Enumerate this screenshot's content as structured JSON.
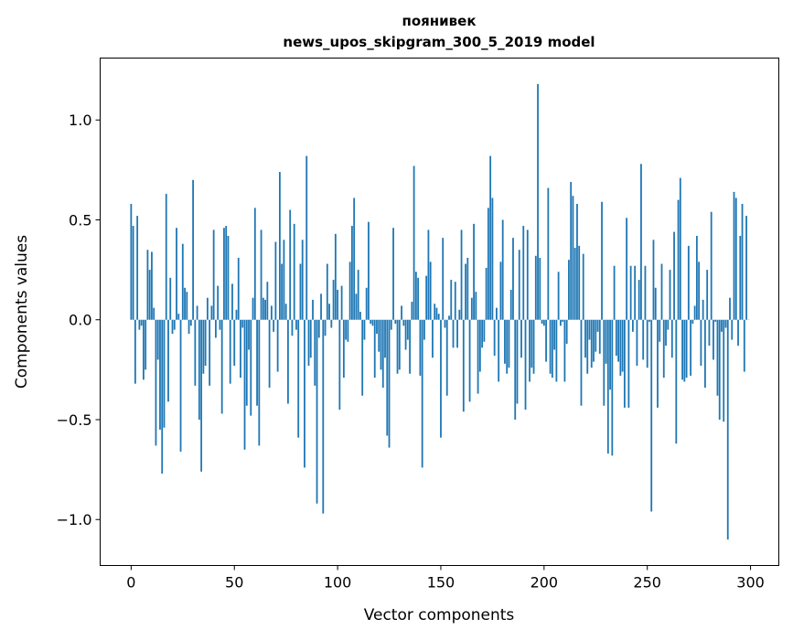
{
  "chart_data": {
    "type": "bar",
    "title": [
      "поянивек",
      "news_upos_skipgram_300_5_2019 model"
    ],
    "xlabel": "Vector components",
    "ylabel": "Components values",
    "xlim": [
      -15,
      313.7
    ],
    "ylim": [
      -1.23,
      1.31
    ],
    "xticks": [
      0,
      50,
      100,
      150,
      200,
      250,
      300
    ],
    "xtick_labels": [
      "0",
      "50",
      "100",
      "150",
      "200",
      "250",
      "300"
    ],
    "yticks": [
      -1.0,
      -0.5,
      0.0,
      0.5,
      1.0
    ],
    "ytick_labels": [
      "−1.0",
      "−0.5",
      "0.0",
      "0.5",
      "1.0"
    ],
    "grid": false,
    "bar_color": "#1f77b4",
    "values": [
      0.58,
      0.47,
      -0.32,
      0.52,
      -0.05,
      -0.03,
      -0.3,
      -0.25,
      0.35,
      0.25,
      0.34,
      0.06,
      -0.63,
      -0.2,
      -0.55,
      -0.77,
      -0.54,
      0.63,
      -0.41,
      0.21,
      -0.07,
      -0.05,
      0.46,
      0.03,
      -0.66,
      0.38,
      0.16,
      0.14,
      -0.07,
      -0.03,
      0.7,
      -0.33,
      0.07,
      -0.5,
      -0.76,
      -0.27,
      -0.23,
      0.11,
      -0.33,
      0.07,
      0.45,
      -0.09,
      0.17,
      -0.05,
      -0.47,
      0.46,
      0.47,
      0.42,
      -0.32,
      0.18,
      -0.23,
      0.05,
      0.31,
      -0.29,
      -0.04,
      -0.65,
      -0.43,
      -0.15,
      -0.48,
      0.11,
      0.56,
      -0.43,
      -0.63,
      0.45,
      0.11,
      0.1,
      0.19,
      -0.34,
      0.07,
      -0.06,
      0.39,
      -0.26,
      0.74,
      0.28,
      0.4,
      0.08,
      -0.42,
      0.55,
      -0.08,
      0.48,
      -0.05,
      -0.59,
      0.28,
      0.4,
      -0.74,
      0.82,
      -0.23,
      -0.19,
      0.1,
      -0.33,
      -0.92,
      -0.09,
      0.13,
      -0.97,
      -0.08,
      0.28,
      0.08,
      -0.04,
      0.2,
      0.43,
      0.15,
      -0.45,
      0.17,
      -0.29,
      -0.1,
      -0.11,
      0.29,
      0.47,
      0.61,
      0.13,
      0.25,
      0.04,
      -0.38,
      -0.1,
      0.16,
      0.49,
      -0.02,
      -0.03,
      -0.29,
      -0.07,
      -0.16,
      -0.25,
      -0.34,
      -0.19,
      -0.58,
      -0.64,
      -0.05,
      0.46,
      -0.02,
      -0.27,
      -0.25,
      0.07,
      -0.03,
      -0.15,
      -0.1,
      -0.27,
      0.09,
      0.77,
      0.24,
      0.21,
      -0.28,
      -0.74,
      -0.1,
      0.22,
      0.45,
      0.29,
      -0.19,
      0.08,
      0.06,
      0.03,
      -0.59,
      0.41,
      -0.04,
      -0.38,
      0.02,
      0.2,
      -0.14,
      0.19,
      -0.14,
      0.05,
      0.45,
      -0.46,
      0.28,
      0.31,
      -0.41,
      0.11,
      0.48,
      0.14,
      -0.37,
      -0.26,
      -0.14,
      -0.11,
      0.26,
      0.56,
      0.82,
      0.61,
      -0.18,
      0.06,
      -0.31,
      0.29,
      0.5,
      -0.22,
      -0.27,
      -0.24,
      0.15,
      0.41,
      -0.5,
      -0.42,
      0.35,
      -0.19,
      0.47,
      -0.45,
      0.45,
      -0.31,
      -0.24,
      -0.27,
      0.32,
      1.18,
      0.31,
      -0.02,
      -0.03,
      -0.21,
      0.66,
      -0.27,
      -0.29,
      -0.15,
      -0.31,
      0.24,
      -0.03,
      -0.01,
      -0.31,
      -0.12,
      0.3,
      0.69,
      0.62,
      0.36,
      0.58,
      0.37,
      -0.43,
      0.33,
      -0.19,
      -0.27,
      -0.1,
      -0.24,
      -0.21,
      -0.16,
      -0.06,
      -0.17,
      0.59,
      -0.43,
      -0.22,
      -0.67,
      -0.35,
      -0.68,
      0.27,
      -0.18,
      -0.21,
      -0.28,
      -0.26,
      -0.44,
      0.51,
      -0.44,
      0.27,
      -0.06,
      0.27,
      -0.23,
      0.2,
      0.78,
      -0.2,
      0.27,
      -0.24,
      -0.01,
      -0.96,
      0.4,
      0.16,
      -0.44,
      -0.11,
      0.28,
      -0.29,
      -0.13,
      -0.05,
      0.25,
      -0.19,
      0.44,
      -0.62,
      0.6,
      0.71,
      -0.3,
      -0.31,
      -0.29,
      0.37,
      -0.28,
      -0.02,
      0.07,
      0.42,
      0.29,
      -0.23,
      0.1,
      -0.34,
      0.25,
      -0.13,
      0.54,
      -0.2,
      -0.01,
      -0.38,
      -0.5,
      -0.06,
      -0.51,
      -0.04,
      -1.1,
      0.11,
      -0.1,
      0.64,
      0.61,
      -0.13,
      0.42,
      0.58,
      -0.26,
      0.52
    ]
  }
}
